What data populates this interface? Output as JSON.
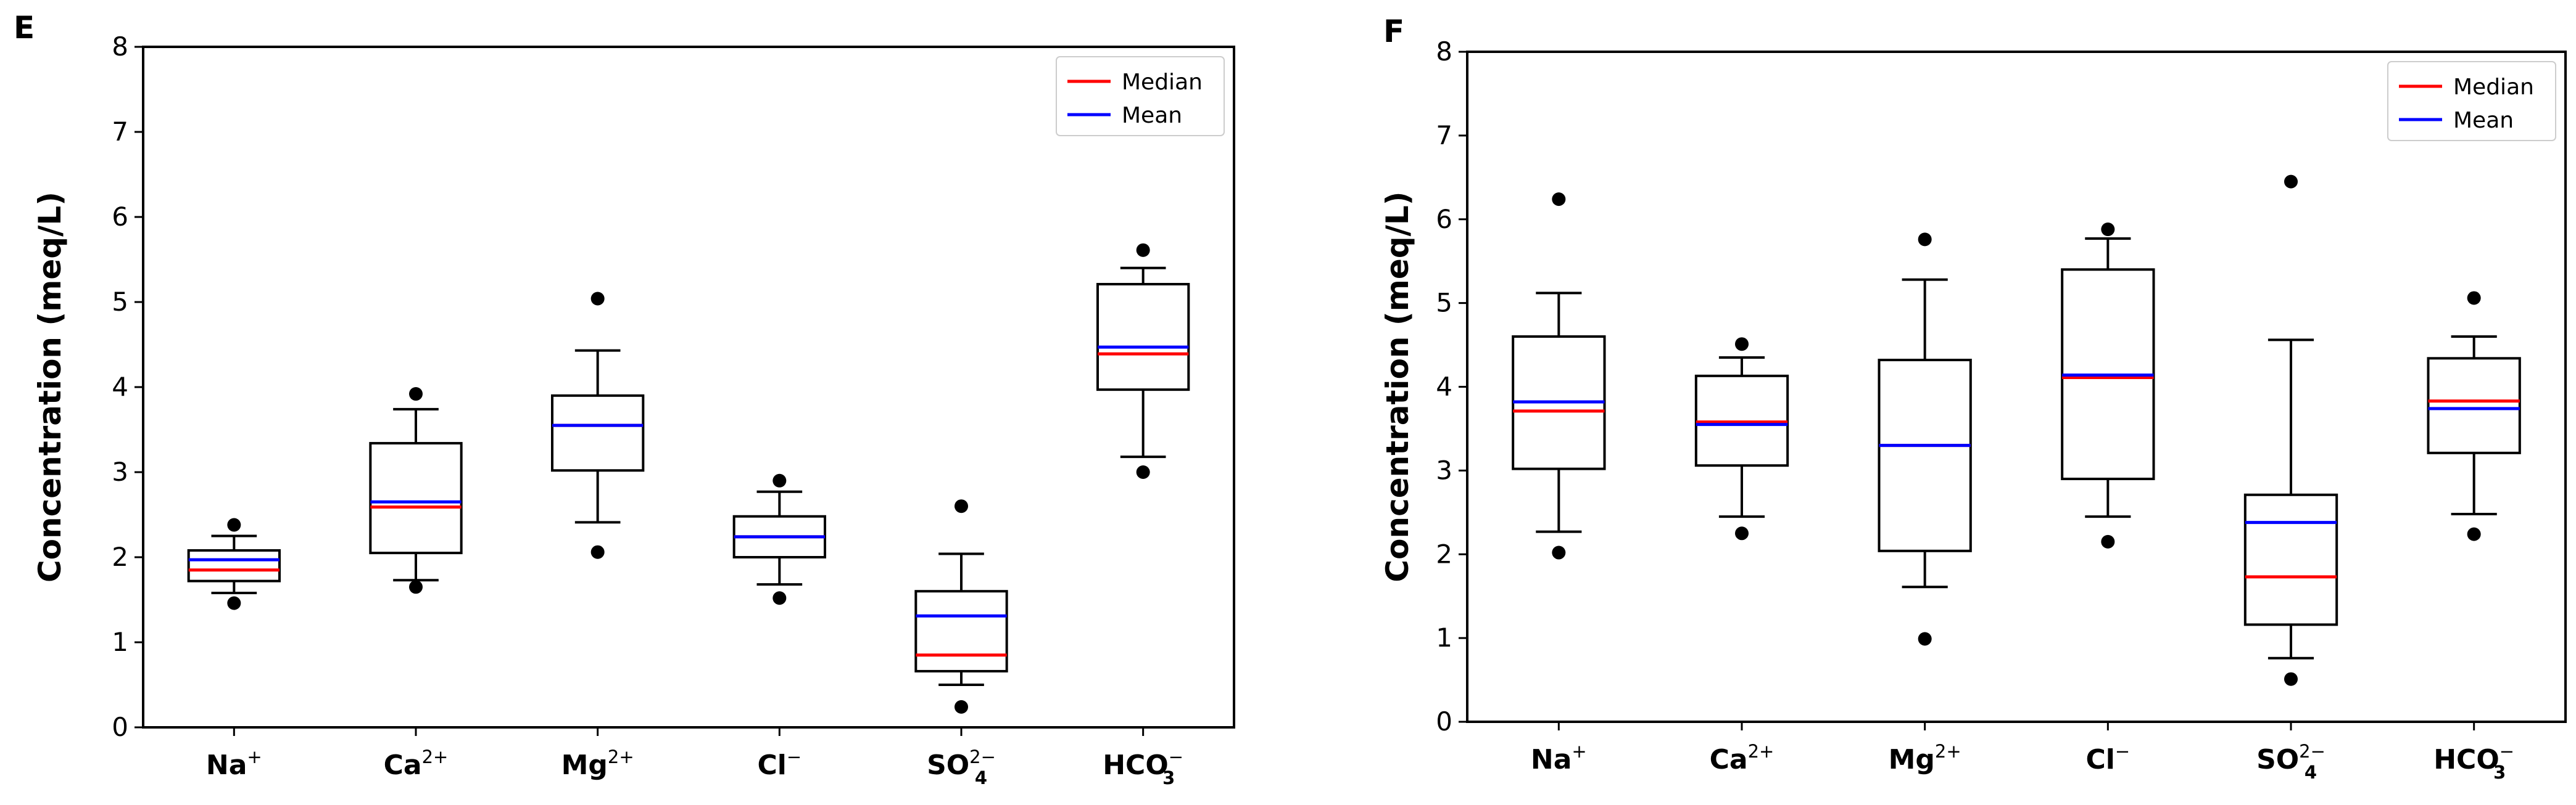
{
  "chart_data": [
    {
      "panel": "E",
      "type": "box",
      "ylabel": "Concentration (meq/L)",
      "ylim": [
        0,
        8
      ],
      "yticks": [
        "0",
        "1",
        "2",
        "3",
        "4",
        "5",
        "6",
        "7",
        "8"
      ],
      "categories": [
        {
          "base": "Na",
          "sup": "+",
          "sub": ""
        },
        {
          "base": "Ca",
          "sup": "2+",
          "sub": ""
        },
        {
          "base": "Mg",
          "sup": "2+",
          "sub": ""
        },
        {
          "base": "Cl",
          "sup": "−",
          "sub": ""
        },
        {
          "base": "SO",
          "sup": "2−",
          "sub": "4"
        },
        {
          "base": "HCO",
          "sup": "−",
          "sub": "3"
        }
      ],
      "boxes": [
        {
          "whisker_low": 1.58,
          "q1": 1.72,
          "median": 1.85,
          "mean": 1.97,
          "q3": 2.08,
          "whisker_high": 2.25,
          "outliers": [
            1.46,
            2.38
          ]
        },
        {
          "whisker_low": 1.73,
          "q1": 2.05,
          "median": 2.59,
          "mean": 2.65,
          "q3": 3.34,
          "whisker_high": 3.74,
          "outliers": [
            1.65,
            3.92
          ]
        },
        {
          "whisker_low": 2.41,
          "q1": 3.02,
          "median": 3.55,
          "mean": 3.55,
          "q3": 3.9,
          "whisker_high": 4.43,
          "outliers": [
            2.06,
            5.04
          ]
        },
        {
          "whisker_low": 1.68,
          "q1": 2.0,
          "median": 2.24,
          "mean": 2.24,
          "q3": 2.48,
          "whisker_high": 2.77,
          "outliers": [
            1.52,
            2.9
          ]
        },
        {
          "whisker_low": 0.5,
          "q1": 0.66,
          "median": 0.85,
          "mean": 1.31,
          "q3": 1.6,
          "whisker_high": 2.04,
          "outliers": [
            0.24,
            2.6
          ]
        },
        {
          "whisker_low": 3.18,
          "q1": 3.97,
          "median": 4.39,
          "mean": 4.47,
          "q3": 5.21,
          "whisker_high": 5.4,
          "outliers": [
            3.0,
            5.61
          ]
        }
      ],
      "legend": [
        {
          "label": "Median",
          "color": "#ff0000"
        },
        {
          "label": "Mean",
          "color": "#0000ff"
        }
      ],
      "legend_position": "top-right"
    },
    {
      "panel": "F",
      "type": "box",
      "ylabel": "Concentration (meq/L)",
      "ylim": [
        0,
        8
      ],
      "yticks": [
        "0",
        "1",
        "2",
        "3",
        "4",
        "5",
        "6",
        "7",
        "8"
      ],
      "categories": [
        {
          "base": "Na",
          "sup": "+",
          "sub": ""
        },
        {
          "base": "Ca",
          "sup": "2+",
          "sub": ""
        },
        {
          "base": "Mg",
          "sup": "2+",
          "sub": ""
        },
        {
          "base": "Cl",
          "sup": "−",
          "sub": ""
        },
        {
          "base": "SO",
          "sup": "2−",
          "sub": "4"
        },
        {
          "base": "HCO",
          "sup": "−",
          "sub": "3"
        }
      ],
      "boxes": [
        {
          "whisker_low": 2.27,
          "q1": 3.02,
          "median": 3.71,
          "mean": 3.82,
          "q3": 4.6,
          "whisker_high": 5.12,
          "outliers": [
            2.02,
            6.24
          ]
        },
        {
          "whisker_low": 2.45,
          "q1": 3.06,
          "median": 3.58,
          "mean": 3.55,
          "q3": 4.13,
          "whisker_high": 4.35,
          "outliers": [
            2.25,
            4.51
          ]
        },
        {
          "whisker_low": 1.61,
          "q1": 2.04,
          "median": 3.3,
          "mean": 3.3,
          "q3": 4.32,
          "whisker_high": 5.28,
          "outliers": [
            0.99,
            5.76
          ]
        },
        {
          "whisker_low": 2.45,
          "q1": 2.9,
          "median": 4.11,
          "mean": 4.14,
          "q3": 5.4,
          "whisker_high": 5.77,
          "outliers": [
            2.15,
            5.88
          ]
        },
        {
          "whisker_low": 0.76,
          "q1": 1.16,
          "median": 1.73,
          "mean": 2.38,
          "q3": 2.71,
          "whisker_high": 4.56,
          "outliers": [
            0.51,
            6.45
          ]
        },
        {
          "whisker_low": 2.48,
          "q1": 3.21,
          "median": 3.83,
          "mean": 3.74,
          "q3": 4.34,
          "whisker_high": 4.6,
          "outliers": [
            2.24,
            5.06
          ]
        }
      ],
      "legend": [
        {
          "label": "Median",
          "color": "#ff0000"
        },
        {
          "label": "Mean",
          "color": "#0000ff"
        }
      ],
      "legend_position": "top-right"
    }
  ]
}
